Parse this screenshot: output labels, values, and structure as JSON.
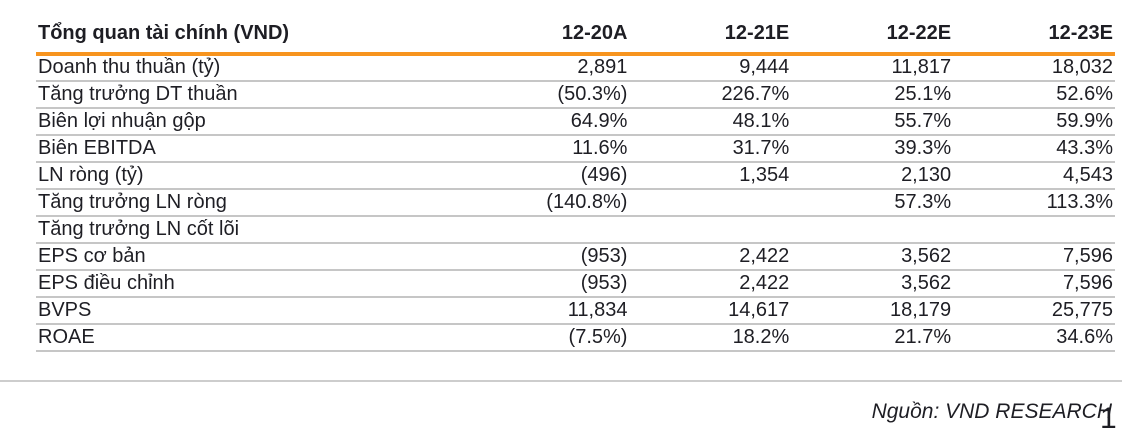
{
  "table": {
    "header": {
      "label": "Tổng quan tài chính (VND)",
      "columns": [
        "12-20A",
        "12-21E",
        "12-22E",
        "12-23E"
      ]
    },
    "rows": [
      {
        "label": "Doanh thu thuần (tỷ)",
        "values": [
          "2,891",
          "9,444",
          "11,817",
          "18,032"
        ]
      },
      {
        "label": "Tăng trưởng DT thuần",
        "values": [
          "(50.3%)",
          "226.7%",
          "25.1%",
          "52.6%"
        ]
      },
      {
        "label": "Biên lợi nhuận gộp",
        "values": [
          "64.9%",
          "48.1%",
          "55.7%",
          "59.9%"
        ]
      },
      {
        "label": "Biên EBITDA",
        "values": [
          "11.6%",
          "31.7%",
          "39.3%",
          "43.3%"
        ]
      },
      {
        "label": "LN ròng (tỷ)",
        "values": [
          "(496)",
          "1,354",
          "2,130",
          "4,543"
        ]
      },
      {
        "label": "Tăng trưởng LN ròng",
        "values": [
          "(140.8%)",
          "",
          "57.3%",
          "113.3%"
        ]
      },
      {
        "label": "Tăng trưởng LN cốt lõi",
        "values": [
          "",
          "",
          "",
          ""
        ]
      },
      {
        "label": "EPS cơ bản",
        "values": [
          "(953)",
          "2,422",
          "3,562",
          "7,596"
        ]
      },
      {
        "label": "EPS điều chỉnh",
        "values": [
          "(953)",
          "2,422",
          "3,562",
          "7,596"
        ]
      },
      {
        "label": "BVPS",
        "values": [
          "11,834",
          "14,617",
          "18,179",
          "25,775"
        ]
      },
      {
        "label": "ROAE",
        "values": [
          "(7.5%)",
          "18.2%",
          "21.7%",
          "34.6%"
        ]
      }
    ]
  },
  "footer": {
    "source": "Nguồn: VND RESEARCH",
    "page_number": "1"
  },
  "colors": {
    "accent_orange": "#F7941E",
    "separator_gray": "#C6C6C6",
    "text": "#1E1E24"
  }
}
